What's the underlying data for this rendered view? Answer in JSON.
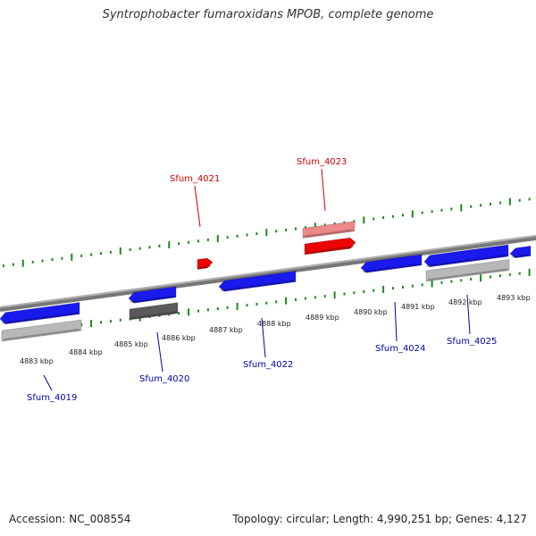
{
  "title": "Syntrophobacter fumaroxidans MPOB, complete genome",
  "colors": {
    "backbone": "#8a8a8a",
    "forward_gene": "#ee0000",
    "forward_gene_light": "#ee8888",
    "reverse_gene": "#1a1aee",
    "reverse_gene_gray": "#b8b8b8",
    "reverse_gene_dark": "#5a5a5a",
    "tick": "#1a8a1a",
    "label_red": "#cc0000",
    "label_blue": "#0000aa"
  },
  "tick_labels": [
    "4883 kbp",
    "4884 kbp",
    "4885 kbp",
    "4886 kbp",
    "4887 kbp",
    "4888 kbp",
    "4889 kbp",
    "4890 kbp",
    "4891 kbp",
    "4892 kbp",
    "4893 kbp"
  ],
  "genes": [
    {
      "name": "Sfum_4019",
      "strand": "reverse"
    },
    {
      "name": "Sfum_4020",
      "strand": "reverse"
    },
    {
      "name": "Sfum_4021",
      "strand": "forward"
    },
    {
      "name": "Sfum_4022",
      "strand": "reverse"
    },
    {
      "name": "Sfum_4023",
      "strand": "forward"
    },
    {
      "name": "Sfum_4024",
      "strand": "reverse"
    },
    {
      "name": "Sfum_4025",
      "strand": "reverse"
    }
  ],
  "footer": {
    "accession": "Accession: NC_008554",
    "summary": "Topology: circular; Length: 4,990,251 bp; Genes: 4,127"
  }
}
